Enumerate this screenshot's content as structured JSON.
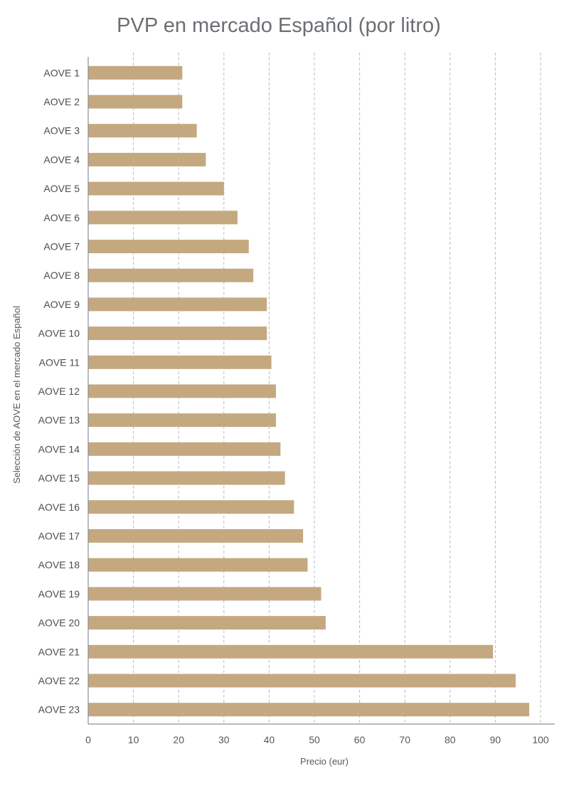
{
  "chart_data": {
    "type": "bar",
    "orientation": "horizontal",
    "title": "PVP en mercado Español (por litro)",
    "xlabel": "Precio (eur)",
    "ylabel": "Selección de AOVE en el mercado Español",
    "xlim": [
      0,
      100
    ],
    "xticks": [
      0,
      10,
      20,
      30,
      40,
      50,
      60,
      70,
      80,
      90,
      100
    ],
    "grid": "vertical dashed",
    "bar_color": "#c4a87f",
    "categories": [
      "AOVE 1",
      "AOVE 2",
      "AOVE 3",
      "AOVE 4",
      "AOVE 5",
      "AOVE 6",
      "AOVE 7",
      "AOVE 8",
      "AOVE 9",
      "AOVE 10",
      "AOVE 11",
      "AOVE 12",
      "AOVE 13",
      "AOVE 14",
      "AOVE 15",
      "AOVE 16",
      "AOVE 17",
      "AOVE 18",
      "AOVE 19",
      "AOVE 20",
      "AOVE 21",
      "AOVE 22",
      "AOVE 23"
    ],
    "values": [
      20.8,
      20.8,
      24.0,
      26.0,
      30.0,
      33.0,
      35.5,
      36.5,
      39.5,
      39.5,
      40.5,
      41.5,
      41.5,
      42.5,
      43.5,
      45.5,
      47.5,
      48.5,
      51.5,
      52.5,
      89.5,
      94.5,
      97.5
    ]
  }
}
